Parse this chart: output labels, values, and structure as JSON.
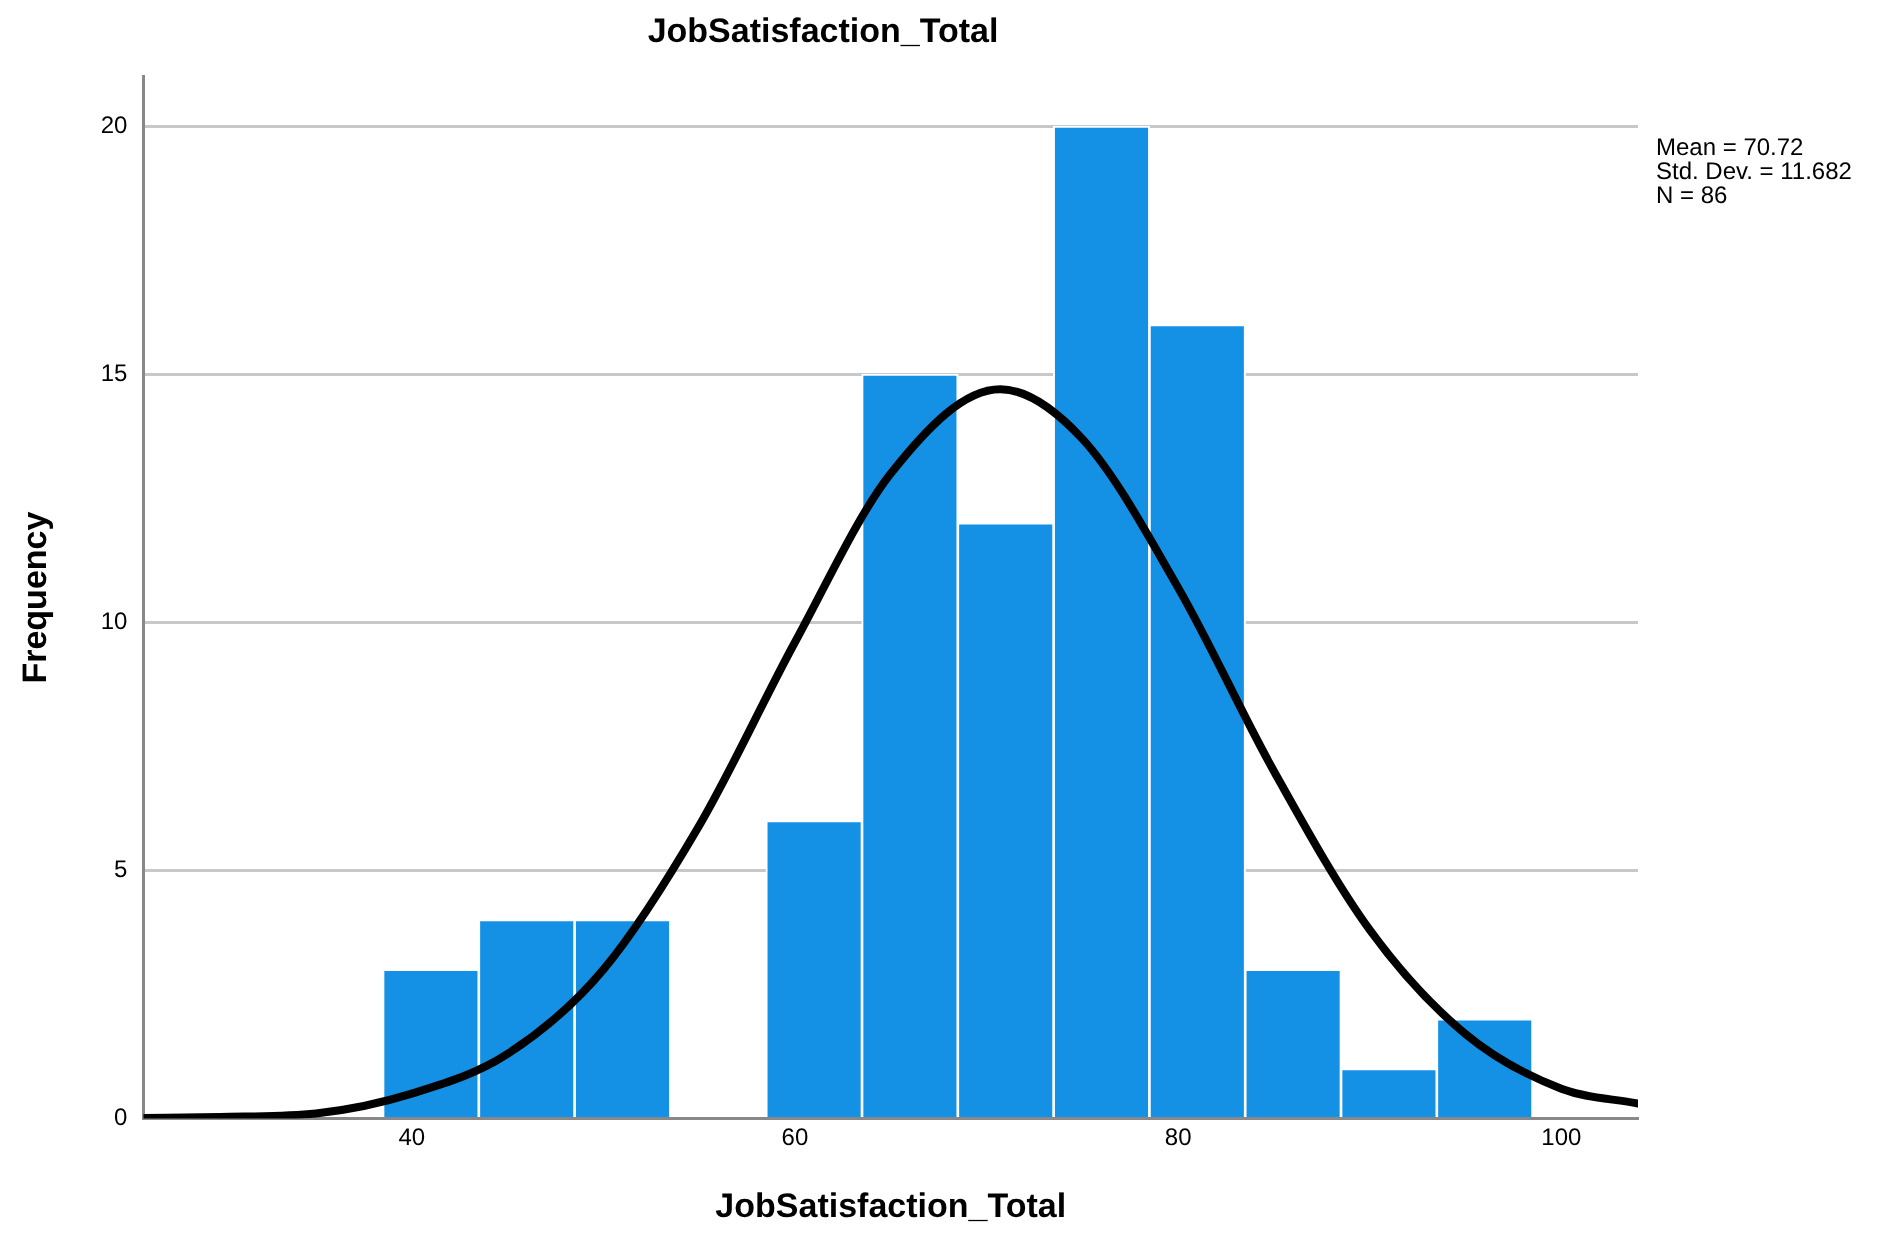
{
  "chart_data": {
    "type": "histogram",
    "title": "JobSatisfaction_Total",
    "xlabel": "JobSatisfaction_Total",
    "ylabel": "Frequency",
    "bins": [
      38.5,
      43.5,
      48.5,
      53.5,
      58.5,
      63.5,
      68.5,
      73.5,
      78.5,
      83.5,
      88.5,
      93.5,
      98.5
    ],
    "values": [
      3,
      4,
      4,
      0,
      6,
      15,
      12,
      20,
      16,
      3,
      1,
      2
    ],
    "color": "#1490e4",
    "series": [
      {
        "type": "line",
        "color": "#000000",
        "x": [
          26,
          30,
          35,
          40,
          45,
          50,
          55,
          60,
          65,
          70.72,
          75,
          80,
          85,
          90,
          95,
          100,
          104
        ],
        "values": [
          0.01,
          0.03,
          0.1,
          0.5,
          1.3,
          3.0,
          5.9,
          9.6,
          13.0,
          14.7,
          13.7,
          10.7,
          7.0,
          3.8,
          1.7,
          0.6,
          0.3
        ]
      }
    ],
    "xlim": [
      26,
      104
    ],
    "xticks": [
      40,
      60,
      80,
      100
    ],
    "ylim": [
      0,
      21
    ],
    "yticks": [
      0,
      5,
      10,
      15,
      20
    ],
    "grid": "y",
    "legend": false,
    "annotations": [
      "Mean = 70.72",
      "Std. Dev. = 11.682",
      "N = 86"
    ]
  }
}
